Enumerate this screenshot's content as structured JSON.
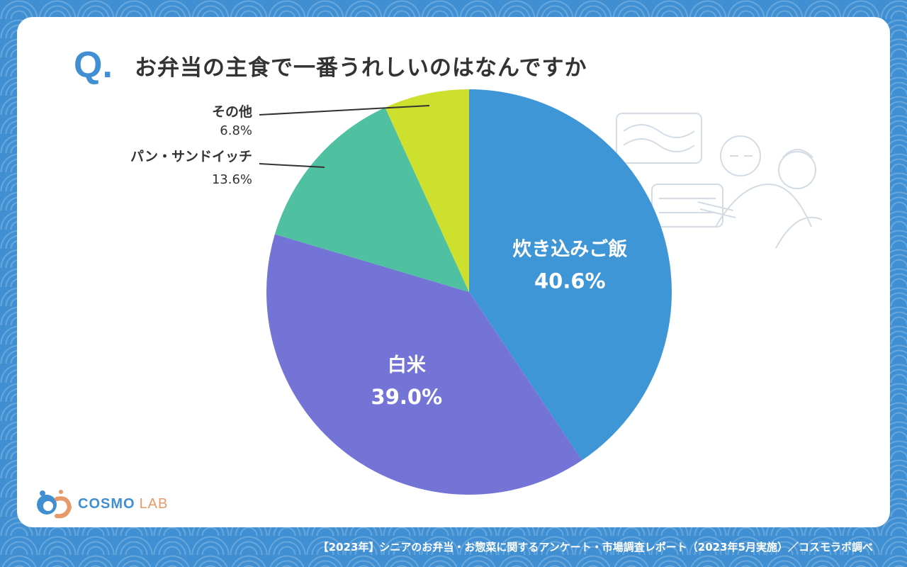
{
  "question_mark": "Q.",
  "title": "お弁当の主食で一番うれしいのはなんですか",
  "chart_data": {
    "type": "pie",
    "title": "お弁当の主食で一番うれしいのはなんですか",
    "slices": [
      {
        "label": "炊き込みご飯",
        "value": 40.6,
        "value_label": "40.6%",
        "color": "#3f96d6",
        "label_position": "inside"
      },
      {
        "label": "白米",
        "value": 39.0,
        "value_label": "39.0%",
        "color": "#7474d6",
        "label_position": "inside"
      },
      {
        "label": "パン・サンドイッチ",
        "value": 13.6,
        "value_label": "13.6%",
        "color": "#4fc1a0",
        "label_position": "outside"
      },
      {
        "label": "その他",
        "value": 6.8,
        "value_label": "6.8%",
        "color": "#cde02e",
        "label_position": "outside"
      }
    ],
    "start_angle": "12 o'clock",
    "direction": "clockwise"
  },
  "logo": {
    "word1": "COSMO",
    "word2": "LAB"
  },
  "footer": "【2023年】シニアのお弁当・お惣菜に関するアンケート・市場調査レポート（2023年5月実施）／コスモラボ調べ"
}
